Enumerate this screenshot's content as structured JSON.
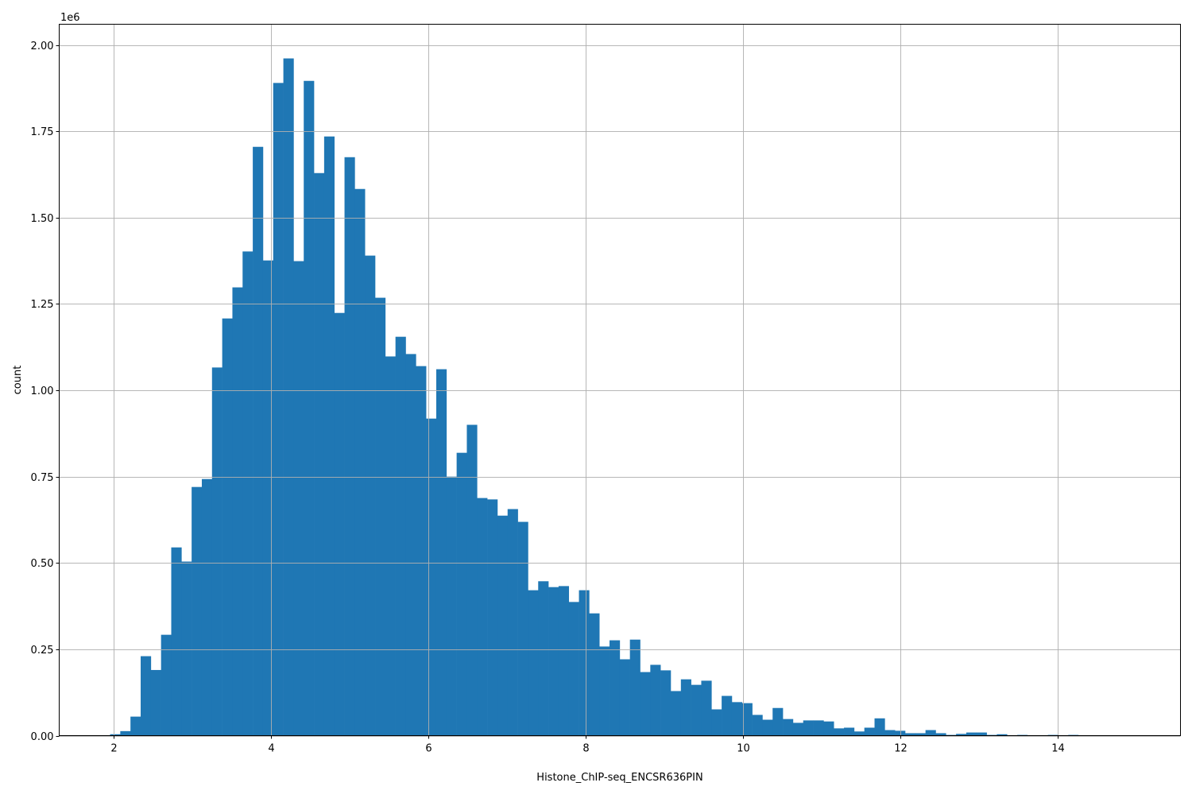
{
  "chart_data": {
    "type": "bar",
    "subtype": "histogram",
    "title": "",
    "xlabel": "Histone_ChIP-seq_ENCSR636PIN",
    "ylabel": "count",
    "y_offset_label": "1e6",
    "bin_range": [
      1.95,
      14.91
    ],
    "bin_count": 100,
    "values_scale": 1000000,
    "values": [
      0.004,
      0.013,
      0.055,
      0.23,
      0.19,
      0.292,
      0.545,
      0.504,
      0.72,
      0.743,
      1.066,
      1.208,
      1.298,
      1.402,
      1.705,
      1.376,
      1.89,
      1.961,
      1.374,
      1.896,
      1.629,
      1.735,
      1.224,
      1.675,
      1.583,
      1.39,
      1.268,
      1.098,
      1.155,
      1.105,
      1.07,
      0.918,
      1.061,
      0.75,
      0.819,
      0.9,
      0.688,
      0.684,
      0.637,
      0.656,
      0.619,
      0.421,
      0.447,
      0.43,
      0.433,
      0.387,
      0.421,
      0.354,
      0.258,
      0.276,
      0.221,
      0.278,
      0.184,
      0.205,
      0.189,
      0.129,
      0.163,
      0.147,
      0.159,
      0.076,
      0.115,
      0.097,
      0.094,
      0.06,
      0.046,
      0.08,
      0.048,
      0.037,
      0.044,
      0.044,
      0.041,
      0.021,
      0.023,
      0.012,
      0.023,
      0.05,
      0.016,
      0.014,
      0.007,
      0.007,
      0.016,
      0.007,
      0.002,
      0.005,
      0.009,
      0.009,
      0.002,
      0.004,
      0.0,
      0.002,
      0.0,
      0.0,
      0.002,
      0.0,
      0.002,
      0.0,
      0.0,
      0.0,
      0.0,
      0.0005
    ],
    "xlim": [
      1.303,
      15.56
    ],
    "ylim": [
      0,
      2.06
    ],
    "x_ticks": [
      "2",
      "4",
      "6",
      "8",
      "10",
      "12",
      "14"
    ],
    "x_tick_values": [
      2,
      4,
      6,
      8,
      10,
      12,
      14
    ],
    "y_ticks": [
      "0.00",
      "0.25",
      "0.50",
      "0.75",
      "1.00",
      "1.25",
      "1.50",
      "1.75",
      "2.00"
    ],
    "y_tick_values": [
      0,
      0.25,
      0.5,
      0.75,
      1.0,
      1.25,
      1.5,
      1.75,
      2.0
    ],
    "grid": true,
    "bar_color": "#1f77b4",
    "grid_color": "#b0b0b0"
  }
}
